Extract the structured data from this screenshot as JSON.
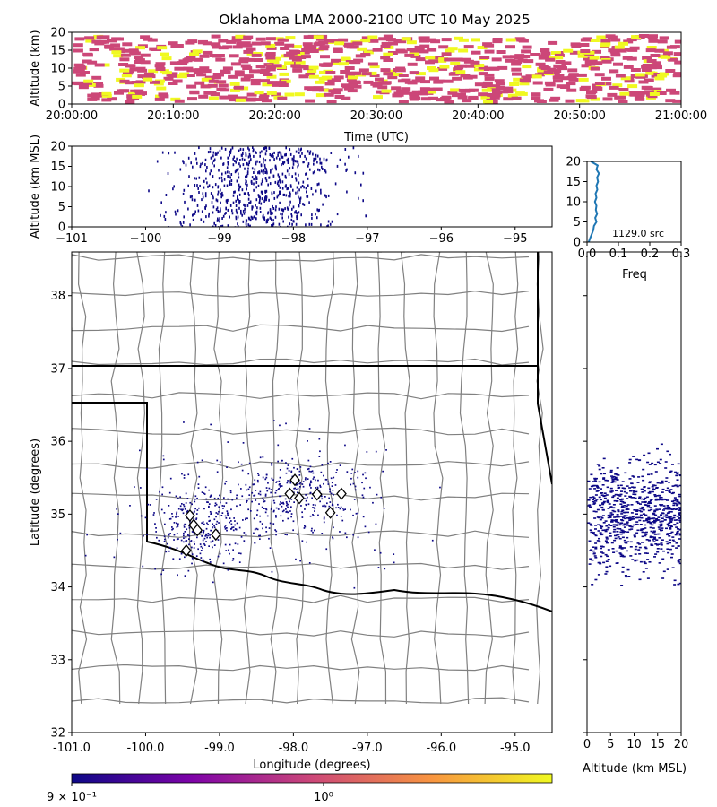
{
  "title": "Oklahoma LMA 2000-2100 UTC 10 May 2025",
  "chart_data": [
    {
      "panel": "time-altitude",
      "type": "heatmap",
      "xlabel": "Time (UTC)",
      "ylabel": "Altitude (km)",
      "xlim": [
        "20:00:00",
        "21:00:00"
      ],
      "ylim": [
        0,
        20
      ],
      "xticks": [
        "20:00:00",
        "20:10:00",
        "20:20:00",
        "20:30:00",
        "20:40:00",
        "20:50:00",
        "21:00:00"
      ],
      "yticks": [
        "0",
        "5",
        "10",
        "15",
        "20"
      ],
      "colors": {
        "low": "#cc4778",
        "high": "#f0f921"
      }
    },
    {
      "panel": "lon-altitude",
      "type": "heatmap",
      "ylabel": "Altitude (km MSL)",
      "xlim": [
        -101,
        -94.5
      ],
      "ylim": [
        0,
        20
      ],
      "xticks": [
        "−101",
        "−100",
        "−99",
        "−98",
        "−97",
        "−96",
        "−95"
      ],
      "yticks": [
        "0",
        "5",
        "10",
        "15",
        "20"
      ],
      "point_color": "#0d0887"
    },
    {
      "panel": "altitude-histogram",
      "type": "line",
      "xlabel": "Freq",
      "xlim": [
        0,
        0.3
      ],
      "ylim": [
        0,
        20
      ],
      "xticks": [
        "0.0",
        "0.1",
        "0.2",
        "0.3"
      ],
      "yticks": [
        "0",
        "5",
        "10",
        "15",
        "20"
      ],
      "annotation": "1129.0 src",
      "series": [
        {
          "x": [
            0.005,
            0.01,
            0.015,
            0.02,
            0.022,
            0.03,
            0.026,
            0.032,
            0.028,
            0.03,
            0.025,
            0.03,
            0.027,
            0.033,
            0.03,
            0.035,
            0.032,
            0.038,
            0.03,
            0.034,
            0.012
          ],
          "y": [
            0,
            1,
            2,
            3,
            4,
            5,
            6,
            7,
            8,
            9,
            10,
            11,
            12,
            13,
            14,
            15,
            16,
            17,
            18,
            19,
            20
          ]
        }
      ],
      "line_color": "#1f77b4"
    },
    {
      "panel": "plan-view",
      "type": "scatter",
      "xlabel": "Longitude (degrees)",
      "ylabel": "Latitude (degrees)",
      "xlim": [
        -101.0,
        -94.5
      ],
      "ylim": [
        32.0,
        38.6
      ],
      "xticks": [
        "-101.0",
        "-100.0",
        "-99.0",
        "-98.0",
        "-97.0",
        "-96.0",
        "-95.0"
      ],
      "yticks": [
        "32",
        "33",
        "34",
        "35",
        "36",
        "37",
        "38"
      ],
      "point_color": "#0d0887",
      "stations": [
        [
          -99.4,
          34.98
        ],
        [
          -99.35,
          34.85
        ],
        [
          -99.3,
          34.78
        ],
        [
          -99.05,
          34.72
        ],
        [
          -99.45,
          34.5
        ],
        [
          -97.98,
          35.47
        ],
        [
          -98.05,
          35.28
        ],
        [
          -97.92,
          35.22
        ],
        [
          -97.68,
          35.27
        ],
        [
          -97.35,
          35.28
        ],
        [
          -97.5,
          35.02
        ]
      ]
    },
    {
      "panel": "altitude-latitude",
      "type": "heatmap",
      "xlabel": "Altitude (km MSL)",
      "xlim": [
        0,
        20
      ],
      "xticks": [
        "0",
        "5",
        "10",
        "15",
        "20"
      ],
      "point_color": "#0d0887"
    },
    {
      "panel": "colorbar",
      "type": "colorbar",
      "labels": [
        "9 × 10⁻¹",
        "10⁰"
      ],
      "colors": [
        "#0d0887",
        "#7e03a8",
        "#cc4778",
        "#f89540",
        "#f0f921"
      ]
    }
  ]
}
